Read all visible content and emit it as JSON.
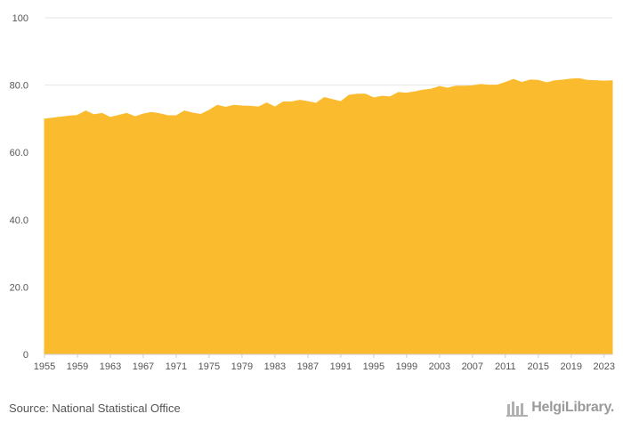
{
  "chart_data": {
    "type": "area",
    "title": "",
    "xlabel": "",
    "ylabel": "",
    "ylim": [
      0,
      100
    ],
    "y_ticks": [
      "0",
      "20.0",
      "40.0",
      "60.0",
      "80.0",
      "100"
    ],
    "x_ticks": [
      "1955",
      "1959",
      "1963",
      "1967",
      "1971",
      "1975",
      "1979",
      "1983",
      "1987",
      "1991",
      "1995",
      "1999",
      "2003",
      "2007",
      "2011",
      "2015",
      "2019",
      "2023"
    ],
    "x": [
      1955,
      1956,
      1957,
      1958,
      1959,
      1960,
      1961,
      1962,
      1963,
      1964,
      1965,
      1966,
      1967,
      1968,
      1969,
      1970,
      1971,
      1972,
      1973,
      1974,
      1975,
      1976,
      1977,
      1978,
      1979,
      1980,
      1981,
      1982,
      1983,
      1984,
      1985,
      1986,
      1987,
      1988,
      1989,
      1990,
      1991,
      1992,
      1993,
      1994,
      1995,
      1996,
      1997,
      1998,
      1999,
      2000,
      2001,
      2002,
      2003,
      2004,
      2005,
      2006,
      2007,
      2008,
      2009,
      2010,
      2011,
      2012,
      2013,
      2014,
      2015,
      2016,
      2017,
      2018,
      2019,
      2020,
      2021,
      2022,
      2023,
      2024
    ],
    "values": [
      69.9,
      70.2,
      70.5,
      70.8,
      71.0,
      72.3,
      71.2,
      71.6,
      70.4,
      71.0,
      71.6,
      70.6,
      71.4,
      71.9,
      71.5,
      70.9,
      70.9,
      72.3,
      71.7,
      71.3,
      72.5,
      74.0,
      73.4,
      74.0,
      73.8,
      73.7,
      73.5,
      74.7,
      73.5,
      75.0,
      75.0,
      75.5,
      75.1,
      74.6,
      76.3,
      75.7,
      75.1,
      77.0,
      77.3,
      77.3,
      76.2,
      76.7,
      76.5,
      77.8,
      77.6,
      78.0,
      78.5,
      78.8,
      79.6,
      79.1,
      79.7,
      79.7,
      79.8,
      80.2,
      80.0,
      80.0,
      80.8,
      81.7,
      80.8,
      81.5,
      81.4,
      80.7,
      81.3,
      81.5,
      81.8,
      81.9,
      81.4,
      81.3,
      81.2,
      81.3
    ],
    "fill_color": "#fabb2e",
    "grid": true
  },
  "footer": {
    "source": "Source: National Statistical Office",
    "brand": "HelgiLibrary."
  }
}
